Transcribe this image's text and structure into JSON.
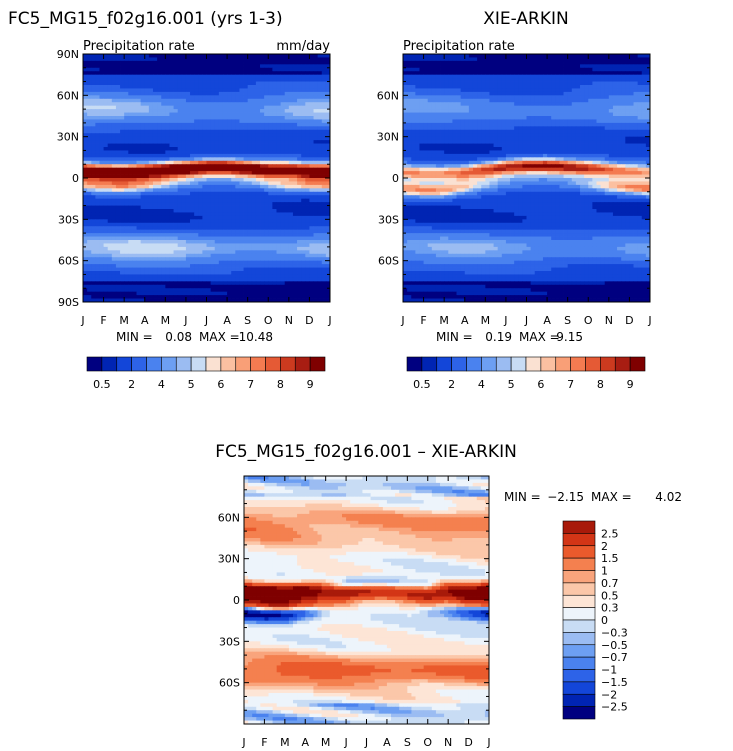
{
  "chart_data": [
    {
      "type": "heatmap",
      "id": "model",
      "title": "FC5_MG15_f02g16.001 (yrs 1-3)",
      "subtitle_left": "Precipitation rate",
      "units": "mm/day",
      "x_ticks": [
        "J",
        "F",
        "M",
        "A",
        "M",
        "J",
        "J",
        "A",
        "S",
        "O",
        "N",
        "D",
        "J"
      ],
      "y_ticks": [
        "90N",
        "60N",
        "30N",
        "0",
        "30S",
        "60S",
        "90S"
      ],
      "y_range": [
        -90,
        90
      ],
      "min_label": "MIN =",
      "min_value": "0.08",
      "max_label": "MAX =",
      "max_value": "10.48",
      "colorbar_labels": [
        "0.5",
        "2",
        "4",
        "5",
        "6",
        "7",
        "8",
        "9"
      ],
      "features": {
        "itcz_lat": [
          5,
          4,
          4,
          5,
          6,
          7,
          8,
          8,
          7,
          6,
          6,
          5,
          5
        ],
        "itcz_peak": [
          9.6,
          9.4,
          9.2,
          9.4,
          9.9,
          10.2,
          10.3,
          10.2,
          9.9,
          9.6,
          9.4,
          9.5,
          9.6
        ],
        "spcz_lat": [
          -5,
          -6,
          -6,
          -5,
          -4,
          -3,
          -2,
          -2,
          -3,
          -4,
          -5,
          -5,
          -5
        ],
        "spcz_peak": [
          5.8,
          6.2,
          6.3,
          5.6,
          4.5,
          3.6,
          3.0,
          3.0,
          3.5,
          4.4,
          5.2,
          5.6,
          5.8
        ],
        "storm_track_n": 3.6,
        "storm_track_s": 3.9
      }
    },
    {
      "type": "heatmap",
      "id": "obs",
      "title": "XIE-ARKIN",
      "subtitle_left": "Precipitation rate",
      "x_ticks": [
        "J",
        "F",
        "M",
        "A",
        "M",
        "J",
        "J",
        "A",
        "S",
        "O",
        "N",
        "D",
        "J"
      ],
      "y_ticks": [
        "60N",
        "30N",
        "0",
        "30S",
        "60S"
      ],
      "y_range": [
        -90,
        90
      ],
      "min_label": "MIN =",
      "min_value": "0.19",
      "max_label": "MAX =",
      "max_value": "9.15",
      "colorbar_labels": [
        "0.5",
        "2",
        "4",
        "5",
        "6",
        "7",
        "8",
        "9"
      ],
      "features": {
        "itcz_lat": [
          4,
          3,
          3,
          4,
          6,
          8,
          9,
          9,
          8,
          7,
          6,
          5,
          4
        ],
        "itcz_peak": [
          6.0,
          5.8,
          5.8,
          6.4,
          7.4,
          8.3,
          8.8,
          8.9,
          8.6,
          8.0,
          7.0,
          6.3,
          6.0
        ],
        "spcz_lat": [
          -8,
          -9,
          -9,
          -7,
          -5,
          -3,
          -2,
          -2,
          -3,
          -5,
          -6,
          -7,
          -8
        ],
        "spcz_peak": [
          6.8,
          6.9,
          6.6,
          5.4,
          4.1,
          3.3,
          3.0,
          3.0,
          3.3,
          4.3,
          5.6,
          6.4,
          6.8
        ],
        "storm_track_n": 3.0,
        "storm_track_s": 3.3
      }
    },
    {
      "type": "heatmap",
      "id": "diff",
      "title": "FC5_MG15_f02g16.001 – XIE-ARKIN",
      "x_ticks": [
        "J",
        "F",
        "M",
        "A",
        "M",
        "J",
        "J",
        "A",
        "S",
        "O",
        "N",
        "D",
        "J"
      ],
      "y_ticks": [
        "60N",
        "30N",
        "0",
        "30S",
        "60S"
      ],
      "y_range": [
        -90,
        90
      ],
      "min_label": "MIN =",
      "min_value": "−2.15",
      "max_label": "MAX =",
      "max_value": "4.02",
      "colorbar_labels": [
        "2.5",
        "2",
        "1.5",
        "1",
        "0.7",
        "0.5",
        "0.3",
        "0",
        "−0.3",
        "−0.5",
        "−0.7",
        "−1",
        "−1.5",
        "−2",
        "−2.5"
      ]
    }
  ],
  "palettes": {
    "sequential": [
      "#000080",
      "#0024b3",
      "#1346d9",
      "#2d63e8",
      "#4a82ef",
      "#6d9ff2",
      "#9bbcf2",
      "#c8dcf4",
      "#fae1d2",
      "#fbc0a1",
      "#f99f77",
      "#f47b51",
      "#e55a35",
      "#cc3a1f",
      "#a81d12",
      "#7f0000"
    ],
    "diverging": [
      "#000080",
      "#0024b3",
      "#1346d9",
      "#2d63e8",
      "#4a82ef",
      "#6d9ff2",
      "#9bbcf2",
      "#c8dcf4",
      "#edf4fb",
      "#fde5d6",
      "#fbc7a9",
      "#f9a47c",
      "#f4804f",
      "#ea5a2c",
      "#d33516",
      "#a81a0a",
      "#7f0000"
    ]
  }
}
